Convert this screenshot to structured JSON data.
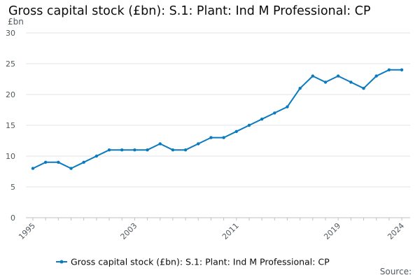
{
  "chart_data": {
    "type": "line",
    "title": "Gross capital stock (£bn): S.1: Plant: Ind M Professional: CP",
    "y_unit": "£bn",
    "xlabel": "",
    "ylabel": "",
    "xlim": [
      1995,
      2024
    ],
    "ylim": [
      0,
      30
    ],
    "y_ticks": [
      0,
      5,
      10,
      15,
      20,
      25,
      30
    ],
    "x_ticks": [
      1995,
      2003,
      2011,
      2019,
      2024
    ],
    "grid": true,
    "legend_position": "bottom",
    "series": [
      {
        "name": "Gross capital stock (£bn): S.1: Plant: Ind M Professional: CP",
        "color": "#0a7abf",
        "x": [
          1995,
          1996,
          1997,
          1998,
          1999,
          2000,
          2001,
          2002,
          2003,
          2004,
          2005,
          2006,
          2007,
          2008,
          2009,
          2010,
          2011,
          2012,
          2013,
          2014,
          2015,
          2016,
          2017,
          2018,
          2019,
          2020,
          2021,
          2022,
          2023,
          2024
        ],
        "values": [
          8,
          9,
          9,
          8,
          9,
          10,
          11,
          11,
          11,
          11,
          12,
          11,
          11,
          12,
          13,
          13,
          14,
          15,
          16,
          17,
          18,
          21,
          23,
          22,
          23,
          22,
          21,
          23,
          24,
          24
        ]
      }
    ]
  },
  "footer": {
    "source_label": "Source:"
  }
}
